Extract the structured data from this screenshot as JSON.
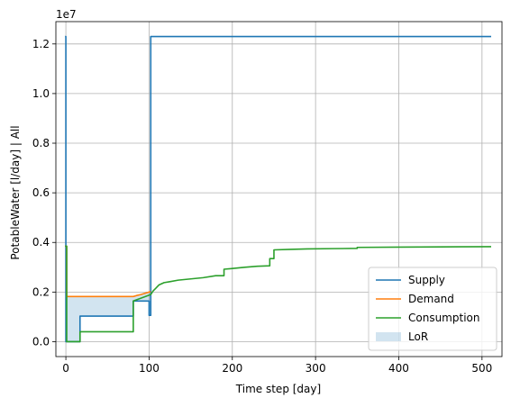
{
  "chart_data": {
    "type": "line",
    "xlabel": "Time step [day]",
    "ylabel": "PotableWater [l/day] | All",
    "y_offset_label": "1e7",
    "y_scale": 10000000,
    "xlim": [
      -12,
      524
    ],
    "ylim": [
      -600000,
      12900000
    ],
    "xticks": [
      0,
      100,
      200,
      300,
      400,
      500
    ],
    "yticks": [
      0,
      2000000,
      4000000,
      6000000,
      8000000,
      10000000,
      12000000
    ],
    "ytick_labels": [
      "0.0",
      "0.2",
      "0.4",
      "0.6",
      "0.8",
      "1.0",
      "1.2"
    ],
    "grid": true,
    "legend_position": "lower-right",
    "series": [
      {
        "name": "Supply",
        "color": "#1f77b4",
        "points": [
          [
            -1,
            12300000
          ],
          [
            0,
            12300000
          ],
          [
            0,
            0
          ],
          [
            17,
            0
          ],
          [
            17,
            1030000
          ],
          [
            81,
            1030000
          ],
          [
            81,
            1640000
          ],
          [
            100,
            1640000
          ],
          [
            100,
            1060000
          ],
          [
            102,
            1060000
          ],
          [
            102,
            12300000
          ],
          [
            511,
            12300000
          ]
        ]
      },
      {
        "name": "Demand",
        "color": "#ff7f0e",
        "points": [
          [
            -1,
            3850000
          ],
          [
            1,
            3850000
          ],
          [
            1,
            1820000
          ],
          [
            81,
            1820000
          ],
          [
            85,
            1860000
          ],
          [
            90,
            1900000
          ],
          [
            95,
            1950000
          ],
          [
            102,
            2020000
          ]
        ]
      },
      {
        "name": "Consumption",
        "color": "#2ca02c",
        "points": [
          [
            -1,
            3850000
          ],
          [
            1,
            3850000
          ],
          [
            1,
            0
          ],
          [
            17,
            0
          ],
          [
            17,
            400000
          ],
          [
            81,
            400000
          ],
          [
            81,
            1640000
          ],
          [
            102,
            1900000
          ],
          [
            105,
            2050000
          ],
          [
            108,
            2150000
          ],
          [
            112,
            2290000
          ],
          [
            118,
            2380000
          ],
          [
            125,
            2420000
          ],
          [
            135,
            2480000
          ],
          [
            150,
            2530000
          ],
          [
            165,
            2580000
          ],
          [
            180,
            2660000
          ],
          [
            190,
            2660000
          ],
          [
            190,
            2920000
          ],
          [
            200,
            2950000
          ],
          [
            215,
            3000000
          ],
          [
            230,
            3040000
          ],
          [
            245,
            3060000
          ],
          [
            245,
            3350000
          ],
          [
            250,
            3350000
          ],
          [
            250,
            3700000
          ],
          [
            270,
            3720000
          ],
          [
            290,
            3740000
          ],
          [
            320,
            3750000
          ],
          [
            350,
            3760000
          ],
          [
            350,
            3800000
          ],
          [
            400,
            3810000
          ],
          [
            450,
            3820000
          ],
          [
            511,
            3830000
          ]
        ]
      }
    ],
    "lor": {
      "name": "LoR",
      "color": "#1f77b4",
      "opacity": 0.2,
      "upper": [
        [
          1,
          1820000
        ],
        [
          81,
          1820000
        ],
        [
          85,
          1860000
        ],
        [
          90,
          1900000
        ],
        [
          95,
          1950000
        ],
        [
          102,
          2020000
        ]
      ],
      "lower": [
        [
          1,
          0
        ],
        [
          17,
          0
        ],
        [
          17,
          1030000
        ],
        [
          81,
          1030000
        ],
        [
          81,
          1640000
        ],
        [
          100,
          1640000
        ],
        [
          100,
          1060000
        ],
        [
          102,
          1060000
        ]
      ]
    }
  }
}
